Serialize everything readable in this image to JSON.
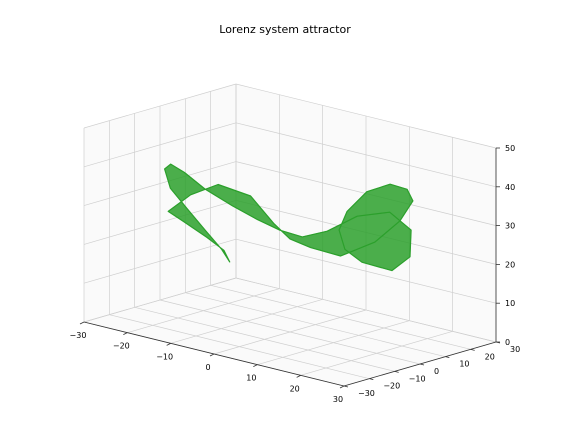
{
  "chart_data": {
    "type": "line",
    "title": "Lorenz system attractor",
    "xlabel": "",
    "ylabel": "",
    "zlabel": "",
    "xlim": [
      -30,
      30
    ],
    "ylim": [
      -30,
      30
    ],
    "zlim": [
      0,
      50
    ],
    "x_ticks": [
      "−30",
      "−20",
      "−10",
      "0",
      "10",
      "20",
      "30"
    ],
    "y_ticks": [
      "−30",
      "−20",
      "−10",
      "0",
      "10",
      "20",
      "30"
    ],
    "z_ticks": [
      "0",
      "10",
      "20",
      "30",
      "40",
      "50"
    ],
    "grid": true,
    "series": [
      {
        "color": "#2ca02c",
        "x": [
          -17,
          -13,
          -9,
          -5,
          -2,
          0,
          3,
          7,
          12,
          16,
          19,
          20,
          19,
          16,
          12,
          9,
          8,
          9,
          13,
          16,
          18,
          16,
          12,
          8,
          4,
          0,
          -4,
          -8,
          -12,
          -15,
          -17,
          -19,
          -20,
          -19,
          -17,
          -14,
          -11,
          -10,
          -11,
          -14,
          -17
        ],
        "y": [
          -19,
          -17,
          -13,
          -7,
          -3,
          0,
          3,
          8,
          13,
          16,
          16,
          12,
          7,
          3,
          2,
          4,
          8,
          13,
          18,
          20,
          17,
          12,
          6,
          1,
          -2,
          -4,
          -6,
          -9,
          -13,
          -16,
          -18,
          -17,
          -13,
          -8,
          -4,
          -3,
          -5,
          -9,
          -14,
          -18,
          -19
        ],
        "z": [
          30,
          35,
          38,
          35,
          28,
          24,
          22,
          20,
          24,
          30,
          36,
          40,
          42,
          40,
          34,
          28,
          22,
          18,
          16,
          20,
          28,
          33,
          32,
          28,
          26,
          27,
          29,
          32,
          36,
          40,
          42,
          40,
          34,
          28,
          22,
          18,
          16,
          20,
          24,
          28,
          30
        ]
      }
    ]
  }
}
